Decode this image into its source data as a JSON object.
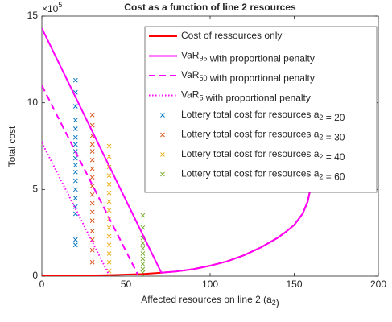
{
  "chart_data": {
    "type": "line",
    "title": "Cost as a function of line 2 resources",
    "x_label": [
      {
        "text": "Affected resources on line 2 (a"
      },
      {
        "sub": "2"
      },
      {
        "text": ")"
      }
    ],
    "y_label": "Total cost",
    "y_multiplier": [
      {
        "text": "×10"
      },
      {
        "sup": "5"
      }
    ],
    "xlim": [
      0,
      200
    ],
    "xticks": [
      0,
      50,
      100,
      150,
      200
    ],
    "ylim": [
      0,
      15
    ],
    "yticks": [
      0,
      5,
      10,
      15
    ],
    "legend": "upper right",
    "series": [
      {
        "name": [
          {
            "text": "Cost of ressources only"
          }
        ],
        "kind": "line",
        "line_style": "solid",
        "color": "#ff0000",
        "x": [
          0,
          20,
          40,
          60,
          71,
          80,
          90,
          100,
          110,
          120,
          130,
          140,
          145,
          150,
          155,
          158,
          160
        ],
        "values": [
          0,
          0.03,
          0.06,
          0.12,
          0.2,
          0.27,
          0.4,
          0.6,
          0.85,
          1.2,
          1.65,
          2.2,
          2.55,
          2.95,
          3.6,
          4.3,
          5.2
        ]
      },
      {
        "name": [
          {
            "text": "VaR"
          },
          {
            "sub": "95"
          },
          {
            "text": " with proportional penalty"
          }
        ],
        "kind": "line",
        "line_style": "solid",
        "color": "#ff00ff",
        "x": [
          0,
          71,
          80,
          90,
          100,
          110,
          120,
          130,
          140,
          145,
          150,
          155,
          158,
          160
        ],
        "values": [
          14.3,
          0.2,
          0.27,
          0.4,
          0.6,
          0.85,
          1.2,
          1.65,
          2.2,
          2.55,
          2.95,
          3.6,
          4.3,
          5.2
        ]
      },
      {
        "name": [
          {
            "text": "VaR"
          },
          {
            "sub": "50"
          },
          {
            "text": " with proportional penalty"
          }
        ],
        "kind": "line",
        "line_style": "dashed",
        "color": "#ff00ff",
        "x": [
          0,
          57
        ],
        "values": [
          11,
          0.1
        ]
      },
      {
        "name": [
          {
            "text": "VaR"
          },
          {
            "sub": "5"
          },
          {
            "text": " with proportional penalty"
          }
        ],
        "kind": "line",
        "line_style": "dotted",
        "color": "#ff00ff",
        "x": [
          0,
          40
        ],
        "values": [
          7.7,
          0.06
        ]
      },
      {
        "name": [
          {
            "text": "Lottery total cost for resources a"
          },
          {
            "sub": "2"
          },
          {
            "text": " = 20"
          }
        ],
        "kind": "scatter",
        "color": "#0072bd",
        "x": [
          20,
          20,
          20,
          20,
          20,
          20,
          20,
          20,
          20,
          20,
          20,
          20,
          20,
          20,
          20,
          20,
          20,
          20
        ],
        "values": [
          1.8,
          2.1,
          3.6,
          4.0,
          4.5,
          5.0,
          5.5,
          6.0,
          6.4,
          6.8,
          7.2,
          7.6,
          8.0,
          8.5,
          9.0,
          9.8,
          10.6,
          11.3
        ]
      },
      {
        "name": [
          {
            "text": "Lottery total cost for resources a"
          },
          {
            "sub": "2"
          },
          {
            "text": " = 30"
          }
        ],
        "kind": "scatter",
        "color": "#d95319",
        "x": [
          30,
          30,
          30,
          30,
          30,
          30,
          30,
          30,
          30,
          30,
          30,
          30,
          30,
          30,
          30,
          30,
          30
        ],
        "values": [
          0.8,
          1.5,
          2.1,
          2.6,
          3.2,
          3.7,
          4.2,
          4.7,
          5.2,
          5.7,
          6.2,
          6.7,
          7.2,
          7.6,
          8.1,
          8.7,
          9.3
        ]
      },
      {
        "name": [
          {
            "text": "Lottery total cost for resources a"
          },
          {
            "sub": "2"
          },
          {
            "text": " = 40"
          }
        ],
        "kind": "scatter",
        "color": "#edb120",
        "x": [
          40,
          40,
          40,
          40,
          40,
          40,
          40,
          40,
          40,
          40,
          40,
          40,
          40,
          40,
          40,
          40
        ],
        "values": [
          0,
          0.3,
          0.8,
          1.3,
          1.8,
          2.3,
          2.8,
          3.3,
          3.8,
          4.3,
          4.8,
          5.3,
          5.8,
          6.3,
          6.9,
          7.5
        ]
      },
      {
        "name": [
          {
            "text": "Lottery total cost for resources a"
          },
          {
            "sub": "2"
          },
          {
            "text": " = 60"
          }
        ],
        "kind": "scatter",
        "color": "#77ac30",
        "x": [
          60,
          60,
          60,
          60,
          60,
          60,
          60,
          60,
          60,
          60,
          60
        ],
        "values": [
          0,
          0.2,
          0.4,
          0.7,
          1.0,
          1.3,
          1.6,
          1.9,
          2.2,
          2.8,
          3.5
        ]
      }
    ]
  }
}
